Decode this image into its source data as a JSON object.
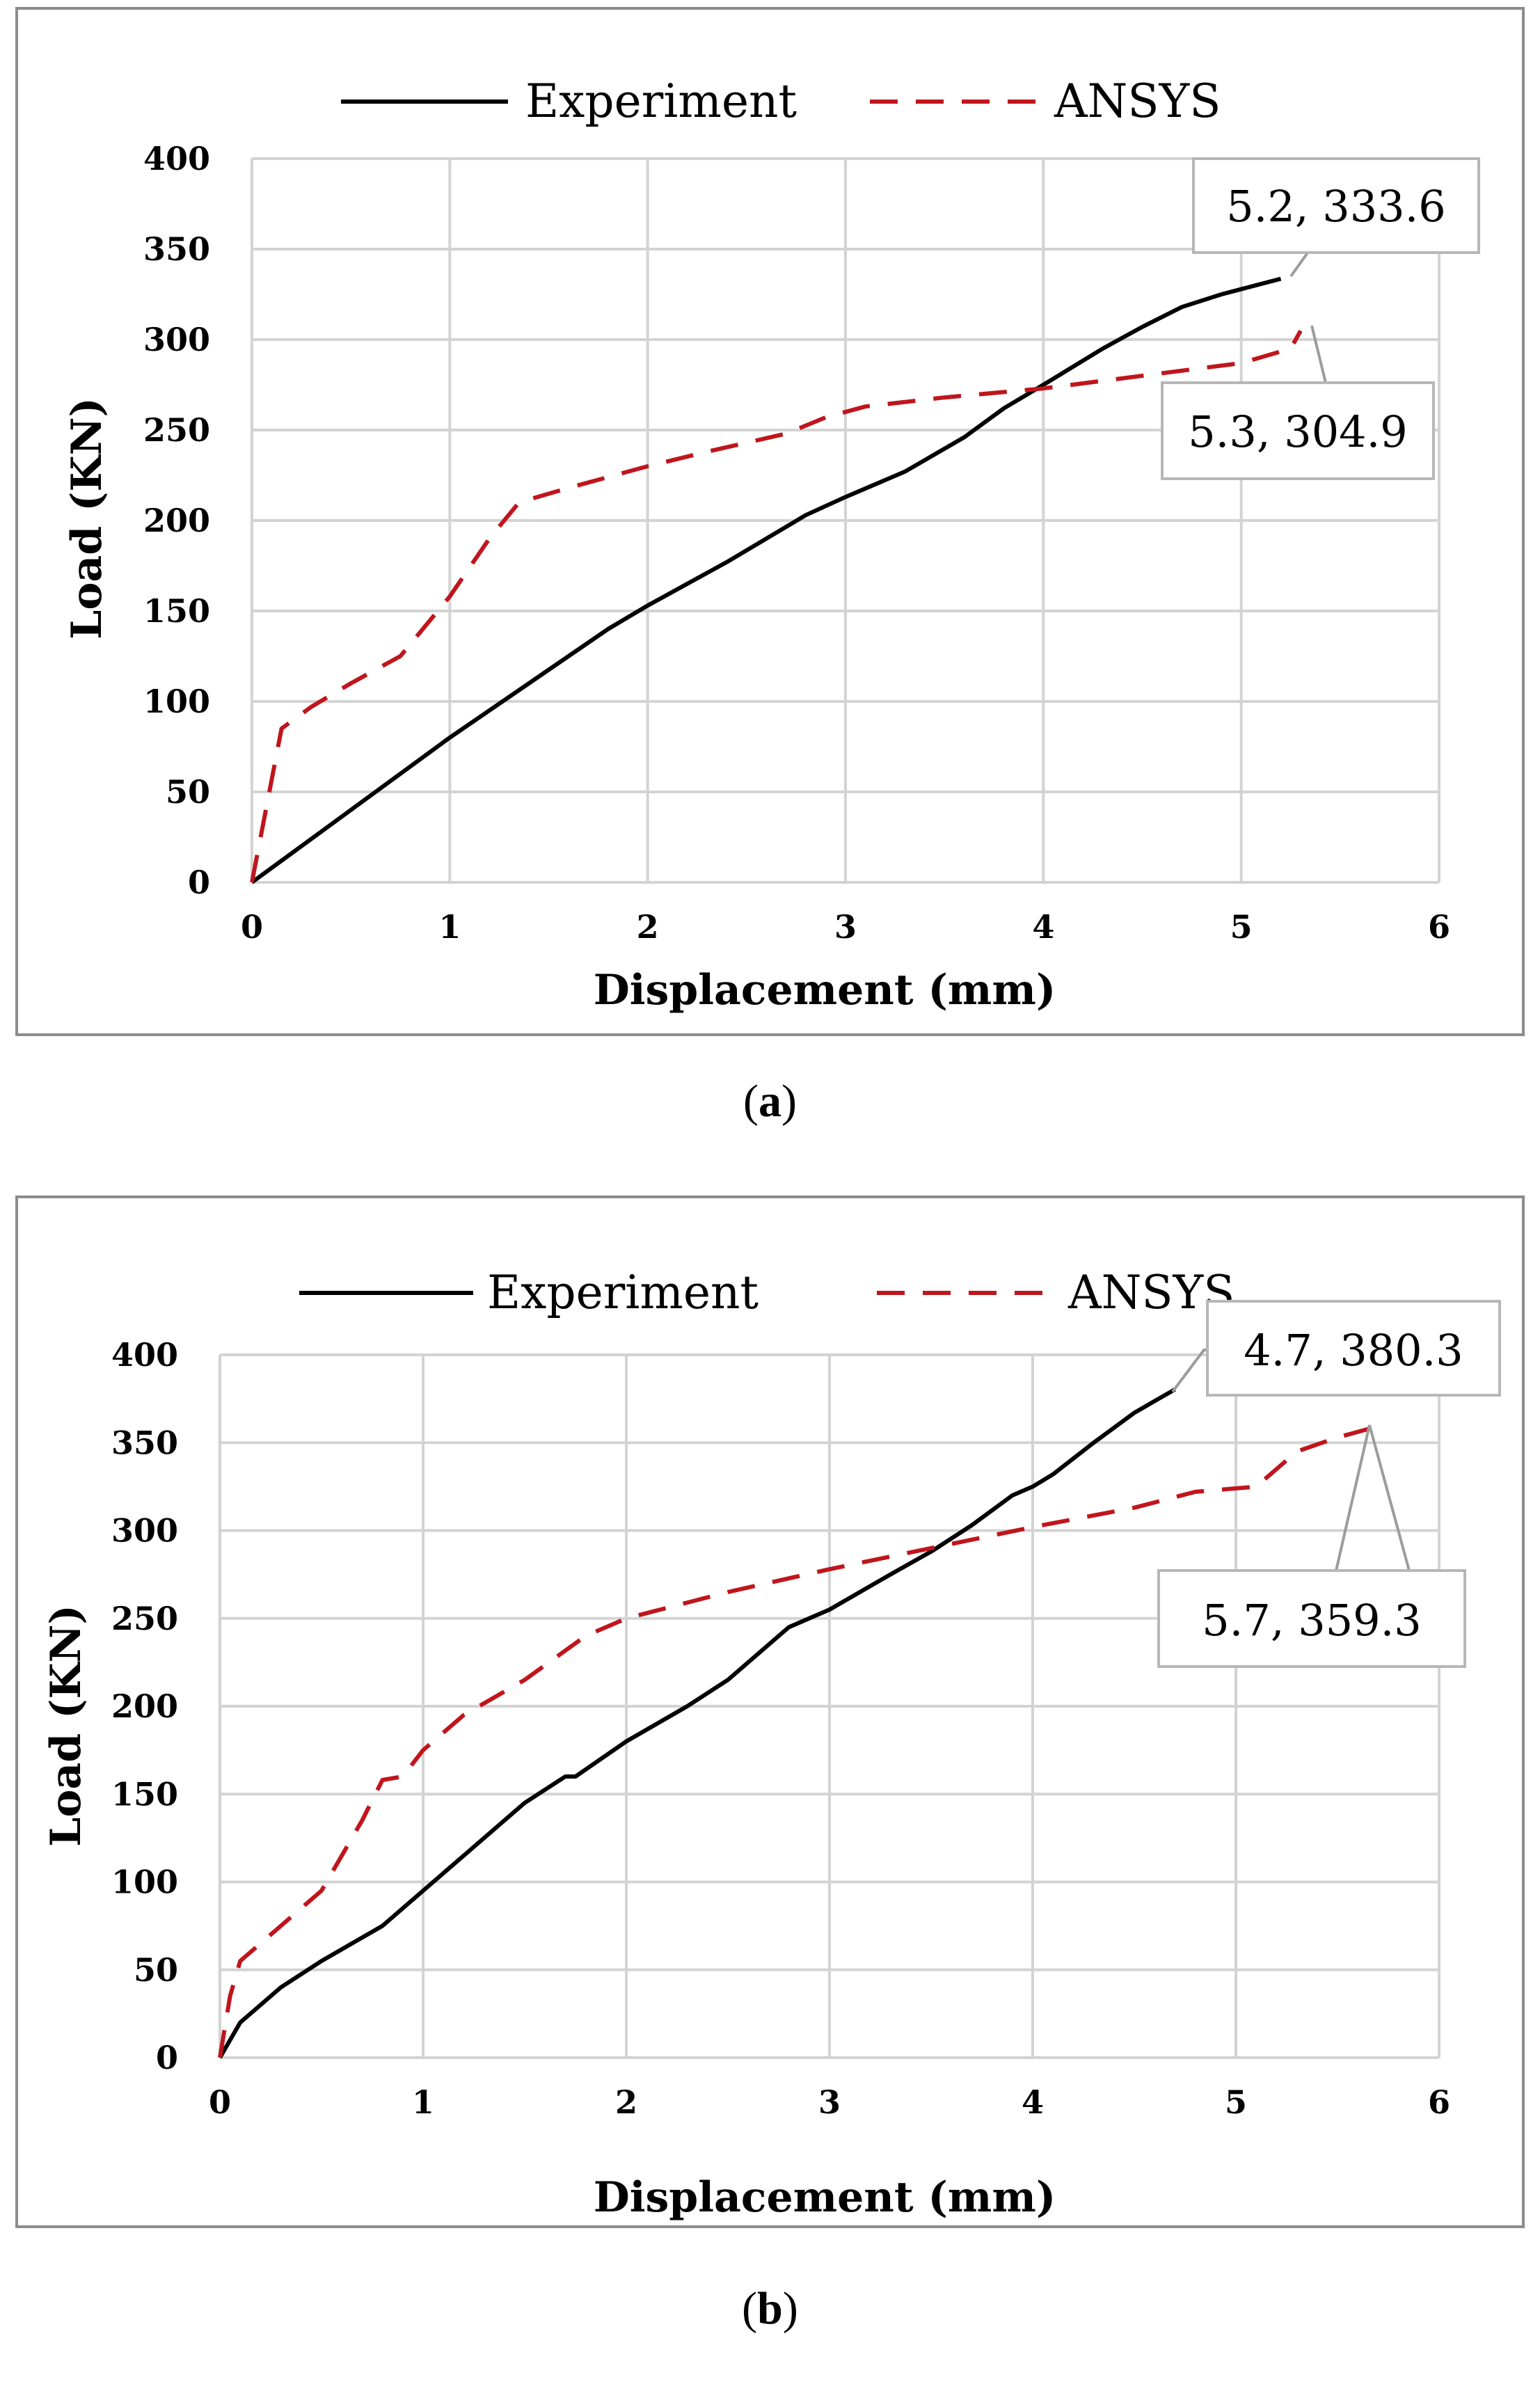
{
  "colors": {
    "experiment": "#000000",
    "ansys": "#c0151c"
  },
  "chart_data": [
    {
      "type": "line",
      "id": "a",
      "caption": "a",
      "xlabel": "Displacement (mm)",
      "ylabel": "Load (KN)",
      "xlim": [
        0,
        6
      ],
      "ylim": [
        0,
        400
      ],
      "xticks": [
        "0",
        "1",
        "2",
        "3",
        "4",
        "5",
        "6"
      ],
      "yticks": [
        "0",
        "50",
        "100",
        "150",
        "200",
        "250",
        "300",
        "350",
        "400"
      ],
      "grid": true,
      "legend_position": "top",
      "series": [
        {
          "name": "Experiment",
          "style": "solid",
          "x": [
            0,
            0.5,
            1.0,
            1.4,
            1.8,
            2.0,
            2.4,
            2.8,
            3.0,
            3.3,
            3.6,
            3.8,
            4.0,
            4.3,
            4.5,
            4.7,
            4.9,
            5.2
          ],
          "y": [
            0,
            40,
            80,
            110,
            140,
            153,
            177,
            203,
            213,
            227,
            246,
            262,
            275,
            295,
            307,
            318,
            325,
            333.6
          ]
        },
        {
          "name": "ANSYS",
          "style": "dashed",
          "x": [
            0,
            0.15,
            0.3,
            0.5,
            0.75,
            1.0,
            1.2,
            1.35,
            1.6,
            2.0,
            2.3,
            2.7,
            2.9,
            3.1,
            3.5,
            4.0,
            4.5,
            5.0,
            5.25,
            5.3
          ],
          "y": [
            0,
            85,
            97,
            110,
            125,
            158,
            190,
            210,
            218,
            230,
            238,
            248,
            257,
            263,
            268,
            273,
            280,
            287,
            295,
            304.9
          ]
        }
      ],
      "annotations": [
        {
          "series": "Experiment",
          "x": 5.2,
          "y": 333.6,
          "label": "5.2, 333.6"
        },
        {
          "series": "ANSYS",
          "x": 5.3,
          "y": 304.9,
          "label": "5.3, 304.9"
        }
      ]
    },
    {
      "type": "line",
      "id": "b",
      "caption": "b",
      "xlabel": "Displacement (mm)",
      "ylabel": "Load (KN)",
      "xlim": [
        0,
        6
      ],
      "ylim": [
        0,
        400
      ],
      "xticks": [
        "0",
        "1",
        "2",
        "3",
        "4",
        "5",
        "6"
      ],
      "yticks": [
        "0",
        "50",
        "100",
        "150",
        "200",
        "250",
        "300",
        "350",
        "400"
      ],
      "grid": true,
      "legend_position": "top",
      "series": [
        {
          "name": "Experiment",
          "style": "solid",
          "x": [
            0,
            0.1,
            0.3,
            0.5,
            0.8,
            1.0,
            1.3,
            1.5,
            1.7,
            1.75,
            2.0,
            2.3,
            2.5,
            2.6,
            2.8,
            3.0,
            3.3,
            3.5,
            3.7,
            3.9,
            4.0,
            4.1,
            4.3,
            4.5,
            4.7
          ],
          "y": [
            0,
            20,
            40,
            55,
            75,
            95,
            125,
            145,
            160,
            160,
            180,
            200,
            215,
            225,
            245,
            255,
            275,
            288,
            303,
            320,
            325,
            332,
            350,
            367,
            380.3
          ]
        },
        {
          "name": "ANSYS",
          "style": "dashed",
          "x": [
            0,
            0.05,
            0.1,
            0.3,
            0.5,
            0.7,
            0.8,
            0.9,
            1.0,
            1.2,
            1.5,
            1.8,
            2.0,
            2.5,
            3.0,
            3.5,
            4.0,
            4.5,
            4.8,
            5.1,
            5.2,
            5.3,
            5.5,
            5.7
          ],
          "y": [
            0,
            35,
            55,
            75,
            95,
            135,
            158,
            160,
            175,
            195,
            215,
            240,
            250,
            265,
            278,
            290,
            302,
            313,
            322,
            325,
            335,
            345,
            353,
            359.3
          ]
        }
      ],
      "annotations": [
        {
          "series": "Experiment",
          "x": 4.7,
          "y": 380.3,
          "label": "4.7, 380.3"
        },
        {
          "series": "ANSYS",
          "x": 5.7,
          "y": 359.3,
          "label": "5.7, 359.3"
        }
      ]
    }
  ]
}
